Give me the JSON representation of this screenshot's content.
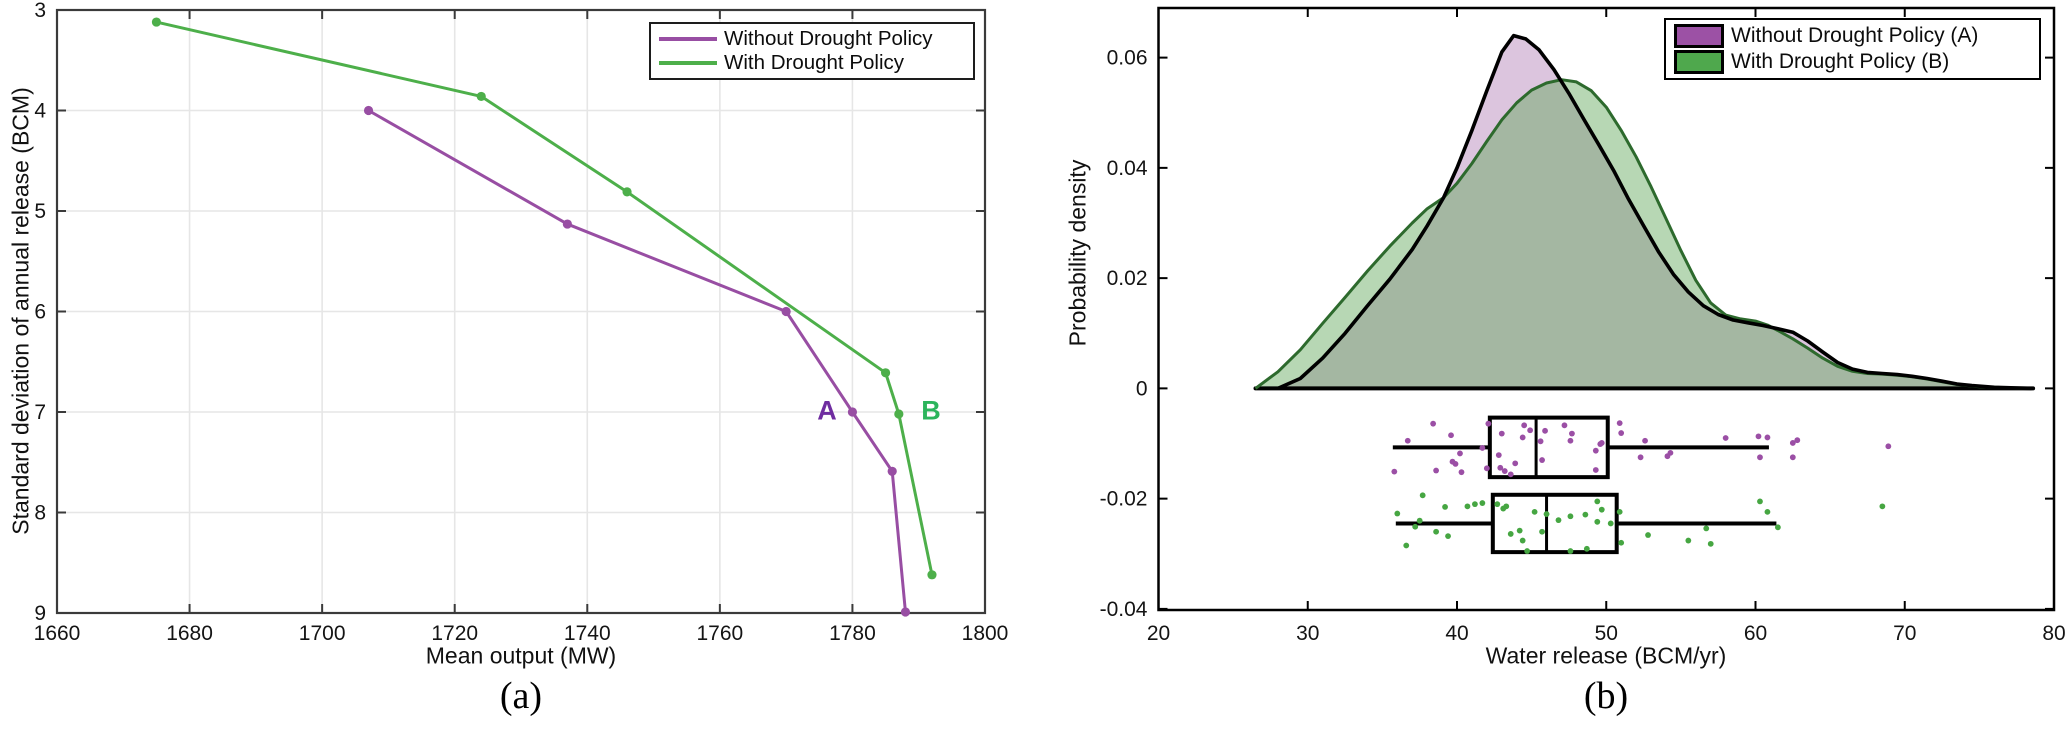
{
  "chart_data": [
    {
      "type": "line",
      "panel": "a",
      "caption": "(a)",
      "xlabel": "Mean output (MW)",
      "ylabel": "Standard deviation of annual release (BCM)",
      "x_ticks": [
        1660,
        1680,
        1700,
        1720,
        1740,
        1760,
        1780,
        1800
      ],
      "y_ticks": [
        3,
        4,
        5,
        6,
        7,
        8,
        9
      ],
      "xlim": [
        1660,
        1800
      ],
      "ylim": [
        3,
        9
      ],
      "y_axis_reversed": true,
      "grid": true,
      "legend_position": "top-right",
      "legend": [
        {
          "label": "Without Drought Policy",
          "color": "#984ea3"
        },
        {
          "label": "With Drought Policy",
          "color": "#4daf4a"
        }
      ],
      "series": [
        {
          "name": "Without Drought Policy",
          "color": "#984ea3",
          "points": [
            [
              1707,
              4.0
            ],
            [
              1737,
              5.13
            ],
            [
              1770,
              6.0
            ],
            [
              1780,
              7.0
            ],
            [
              1786,
              7.59
            ],
            [
              1788,
              8.99
            ]
          ]
        },
        {
          "name": "With Drought Policy",
          "color": "#4daf4a",
          "points": [
            [
              1675,
              3.12
            ],
            [
              1724,
              3.86
            ],
            [
              1746,
              4.81
            ],
            [
              1785,
              6.61
            ],
            [
              1787,
              7.02
            ],
            [
              1792,
              8.62
            ]
          ]
        }
      ],
      "annotations": [
        {
          "text": "A",
          "color": "#6f2da0",
          "x": 1776.2,
          "y": 7.0
        },
        {
          "text": "B",
          "color": "#2cb45c",
          "x": 1791.6,
          "y": 7.0
        }
      ]
    },
    {
      "type": "area",
      "panel": "b",
      "caption": "(b)",
      "xlabel": "Water release (BCM/yr)",
      "ylabel": "Probability density",
      "x_ticks": [
        20,
        30,
        40,
        50,
        60,
        70,
        80
      ],
      "y_ticks": [
        -0.04,
        -0.02,
        0,
        0.02,
        0.04,
        0.06
      ],
      "xlim": [
        20,
        80
      ],
      "ylim": [
        -0.0402,
        0.069
      ],
      "grid": false,
      "legend_position": "top-right",
      "legend": [
        {
          "label": "Without Drought Policy (A)",
          "color": "#9c51a5"
        },
        {
          "label": "With Drought Policy (B)",
          "color": "#4fa84d"
        }
      ],
      "kde_baseline_color": "#000000",
      "kde": [
        {
          "name": "Without Drought Policy (A)",
          "fill": "#dcc5de",
          "stroke": "#000000",
          "peak": [
            43.8,
            0.064
          ],
          "points": [
            [
              28,
              0
            ],
            [
              29.5,
              0.0018
            ],
            [
              31,
              0.0055
            ],
            [
              32.5,
              0.01
            ],
            [
              34,
              0.015
            ],
            [
              35.5,
              0.0198
            ],
            [
              37,
              0.0252
            ],
            [
              38,
              0.0295
            ],
            [
              39.1,
              0.0346
            ],
            [
              40,
              0.04
            ],
            [
              41,
              0.0468
            ],
            [
              42,
              0.054
            ],
            [
              43,
              0.061
            ],
            [
              43.8,
              0.064
            ],
            [
              44.6,
              0.0634
            ],
            [
              45.5,
              0.0614
            ],
            [
              46.5,
              0.0578
            ],
            [
              47.5,
              0.0535
            ],
            [
              48.5,
              0.0488
            ],
            [
              49.5,
              0.0442
            ],
            [
              50.5,
              0.0395
            ],
            [
              51.5,
              0.0343
            ],
            [
              52.5,
              0.0295
            ],
            [
              53.5,
              0.0248
            ],
            [
              54.5,
              0.0207
            ],
            [
              55.5,
              0.0175
            ],
            [
              56.5,
              0.015
            ],
            [
              57.5,
              0.0134
            ],
            [
              58.5,
              0.0124
            ],
            [
              59.5,
              0.0119
            ],
            [
              60.5,
              0.0114
            ],
            [
              61.5,
              0.0108
            ],
            [
              62.5,
              0.0102
            ],
            [
              63.5,
              0.0086
            ],
            [
              64.5,
              0.0066
            ],
            [
              65.5,
              0.0047
            ],
            [
              66.5,
              0.0035
            ],
            [
              67.5,
              0.0029
            ],
            [
              68.5,
              0.0027
            ],
            [
              69.5,
              0.0025
            ],
            [
              70.5,
              0.0022
            ],
            [
              71.5,
              0.0018
            ],
            [
              72.5,
              0.0013
            ],
            [
              73.5,
              0.0008
            ],
            [
              74.5,
              0.0005
            ],
            [
              76,
              0.0002
            ],
            [
              78.5,
              0
            ]
          ]
        },
        {
          "name": "With Drought Policy (B)",
          "fill": "rgba(96,166,88,0.45)",
          "stroke": "#2d6a2d",
          "peak": [
            47,
            0.056
          ],
          "points": [
            [
              26.5,
              0
            ],
            [
              28,
              0.003
            ],
            [
              29.5,
              0.007
            ],
            [
              31,
              0.0118
            ],
            [
              32.5,
              0.0165
            ],
            [
              34,
              0.0213
            ],
            [
              35.5,
              0.0258
            ],
            [
              37,
              0.03
            ],
            [
              38,
              0.0326
            ],
            [
              39.1,
              0.0346
            ],
            [
              40,
              0.0372
            ],
            [
              41,
              0.0408
            ],
            [
              42,
              0.0448
            ],
            [
              43,
              0.0487
            ],
            [
              44,
              0.0518
            ],
            [
              45,
              0.0541
            ],
            [
              46,
              0.0554
            ],
            [
              47,
              0.056
            ],
            [
              48,
              0.0556
            ],
            [
              49,
              0.054
            ],
            [
              50,
              0.051
            ],
            [
              51,
              0.0468
            ],
            [
              52,
              0.042
            ],
            [
              53,
              0.0366
            ],
            [
              54,
              0.0308
            ],
            [
              55,
              0.025
            ],
            [
              56,
              0.0196
            ],
            [
              57,
              0.0155
            ],
            [
              58,
              0.0133
            ],
            [
              59,
              0.0126
            ],
            [
              60,
              0.0122
            ],
            [
              60.8,
              0.0115
            ],
            [
              61.5,
              0.0105
            ],
            [
              62.5,
              0.009
            ],
            [
              63.5,
              0.0073
            ],
            [
              64.5,
              0.0055
            ],
            [
              65.5,
              0.004
            ],
            [
              66.5,
              0.0031
            ],
            [
              67.5,
              0.0027
            ],
            [
              68.5,
              0.0026
            ],
            [
              69.5,
              0.0024
            ],
            [
              70.5,
              0.0021
            ],
            [
              71.5,
              0.0017
            ],
            [
              72.5,
              0.0012
            ],
            [
              73.5,
              0.0007
            ],
            [
              75,
              0.0003
            ],
            [
              78,
              0
            ]
          ]
        }
      ],
      "boxplots": [
        {
          "name": "Without Drought Policy (A)",
          "row_center": -0.0107,
          "box_half_height": 0.0054,
          "whisker_low": 35.7,
          "q1": 42.2,
          "median": 45.3,
          "q3": 50.1,
          "whisker_high": 60.9
        },
        {
          "name": "With Drought Policy (B)",
          "row_center": -0.0245,
          "box_half_height": 0.0052,
          "whisker_low": 35.9,
          "q1": 42.4,
          "median": 46.0,
          "q3": 50.7,
          "whisker_high": 61.4
        }
      ],
      "scatter": [
        {
          "name": "Without Drought Policy (A)",
          "color": "#9b4fa5",
          "points": [
            [
              35.8,
              -0.0151
            ],
            [
              36.7,
              -0.0095
            ],
            [
              38.4,
              -0.0064
            ],
            [
              38.6,
              -0.0149
            ],
            [
              39.6,
              -0.0085
            ],
            [
              39.7,
              -0.0133
            ],
            [
              39.9,
              -0.0137
            ],
            [
              40.2,
              -0.0118
            ],
            [
              40.3,
              -0.0152
            ],
            [
              41.7,
              -0.0108
            ],
            [
              42.1,
              -0.0064
            ],
            [
              42.0,
              -0.0145
            ],
            [
              42.8,
              -0.0121
            ],
            [
              43.0,
              -0.0082
            ],
            [
              42.9,
              -0.0144
            ],
            [
              43.2,
              -0.015
            ],
            [
              43.6,
              -0.0156
            ],
            [
              43.9,
              -0.0136
            ],
            [
              44.5,
              -0.0067
            ],
            [
              44.9,
              -0.0076
            ],
            [
              44.4,
              -0.0089
            ],
            [
              45.6,
              -0.0096
            ],
            [
              45.7,
              -0.013
            ],
            [
              45.9,
              -0.0077
            ],
            [
              47.2,
              -0.0067
            ],
            [
              47.7,
              -0.0082
            ],
            [
              47.6,
              -0.0095
            ],
            [
              49.3,
              -0.0113
            ],
            [
              49.6,
              -0.0101
            ],
            [
              49.7,
              -0.0099
            ],
            [
              49.3,
              -0.0148
            ],
            [
              50.9,
              -0.0063
            ],
            [
              51.0,
              -0.0081
            ],
            [
              52.3,
              -0.0125
            ],
            [
              52.6,
              -0.0095
            ],
            [
              54.3,
              -0.0117
            ],
            [
              54.1,
              -0.0123
            ],
            [
              58.0,
              -0.009
            ],
            [
              60.2,
              -0.0087
            ],
            [
              60.3,
              -0.0125
            ],
            [
              60.8,
              -0.0089
            ],
            [
              62.5,
              -0.0099
            ],
            [
              62.8,
              -0.0094
            ],
            [
              62.5,
              -0.0125
            ],
            [
              68.9,
              -0.0105
            ]
          ]
        },
        {
          "name": "With Drought Policy (B)",
          "color": "#46a642",
          "points": [
            [
              36.0,
              -0.0227
            ],
            [
              36.6,
              -0.0285
            ],
            [
              37.7,
              -0.0194
            ],
            [
              37.5,
              -0.024
            ],
            [
              37.2,
              -0.0251
            ],
            [
              38.6,
              -0.026
            ],
            [
              39.2,
              -0.0215
            ],
            [
              39.4,
              -0.0268
            ],
            [
              40.7,
              -0.0214
            ],
            [
              41.2,
              -0.021
            ],
            [
              41.7,
              -0.0208
            ],
            [
              42.7,
              -0.021
            ],
            [
              43.1,
              -0.0218
            ],
            [
              43.3,
              -0.0214
            ],
            [
              43.6,
              -0.0264
            ],
            [
              44.2,
              -0.0258
            ],
            [
              44.4,
              -0.0276
            ],
            [
              44.7,
              -0.0295
            ],
            [
              45.2,
              -0.0224
            ],
            [
              45.7,
              -0.026
            ],
            [
              46.0,
              -0.0228
            ],
            [
              46.8,
              -0.0239
            ],
            [
              47.6,
              -0.0232
            ],
            [
              48.6,
              -0.0229
            ],
            [
              47.6,
              -0.0295
            ],
            [
              48.7,
              -0.0291
            ],
            [
              49.4,
              -0.0205
            ],
            [
              49.7,
              -0.022
            ],
            [
              49.4,
              -0.0242
            ],
            [
              50.3,
              -0.0245
            ],
            [
              50.9,
              -0.0224
            ],
            [
              51.0,
              -0.028
            ],
            [
              52.8,
              -0.0266
            ],
            [
              55.5,
              -0.0276
            ],
            [
              56.7,
              -0.0254
            ],
            [
              57.0,
              -0.0282
            ],
            [
              60.3,
              -0.0205
            ],
            [
              60.8,
              -0.0224
            ],
            [
              61.5,
              -0.0252
            ],
            [
              68.5,
              -0.0214
            ]
          ]
        }
      ]
    }
  ]
}
